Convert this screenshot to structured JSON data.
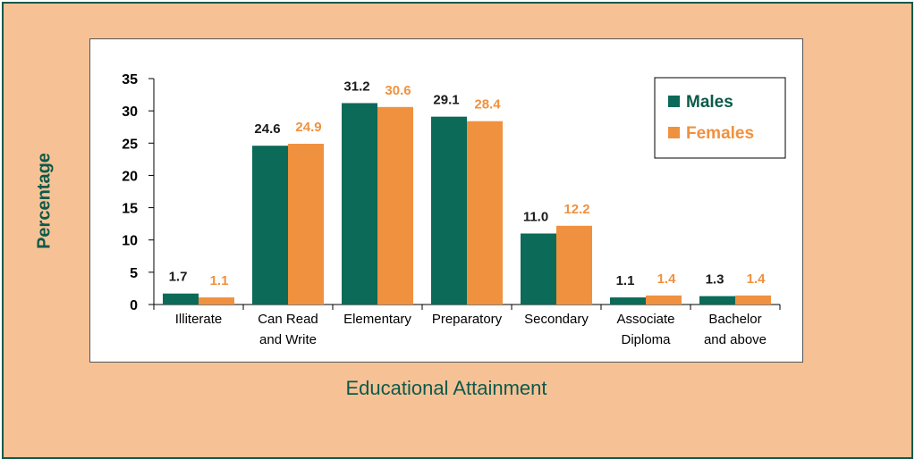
{
  "chart_data": {
    "type": "bar",
    "categories": [
      [
        "Illiterate"
      ],
      [
        "Can Read",
        "and Write"
      ],
      [
        "Elementary"
      ],
      [
        "Preparatory"
      ],
      [
        "Secondary"
      ],
      [
        "Associate",
        "Diploma"
      ],
      [
        "Bachelor",
        "and above"
      ]
    ],
    "series": [
      {
        "name": "Males",
        "color": "#0b6a58",
        "label_color": "#1a1a1a",
        "values": [
          1.7,
          24.6,
          31.2,
          29.1,
          11.0,
          1.1,
          1.3
        ],
        "labels": [
          "1.7",
          "24.6",
          "31.2",
          "29.1",
          "11.0",
          "1.1",
          "1.3"
        ]
      },
      {
        "name": "Females",
        "color": "#f0913f",
        "label_color": "#f0913f",
        "values": [
          1.1,
          24.9,
          30.6,
          28.4,
          12.2,
          1.4,
          1.4
        ],
        "labels": [
          "1.1",
          "24.9",
          "30.6",
          "28.4",
          "12.2",
          "1.4",
          "1.4"
        ]
      }
    ],
    "xlabel": "Educational Attainment",
    "ylabel": "Percentage",
    "ylim": [
      0,
      35
    ],
    "yticks": [
      0,
      5,
      10,
      15,
      20,
      25,
      30,
      35
    ],
    "legend": "top-right",
    "grid": false
  }
}
